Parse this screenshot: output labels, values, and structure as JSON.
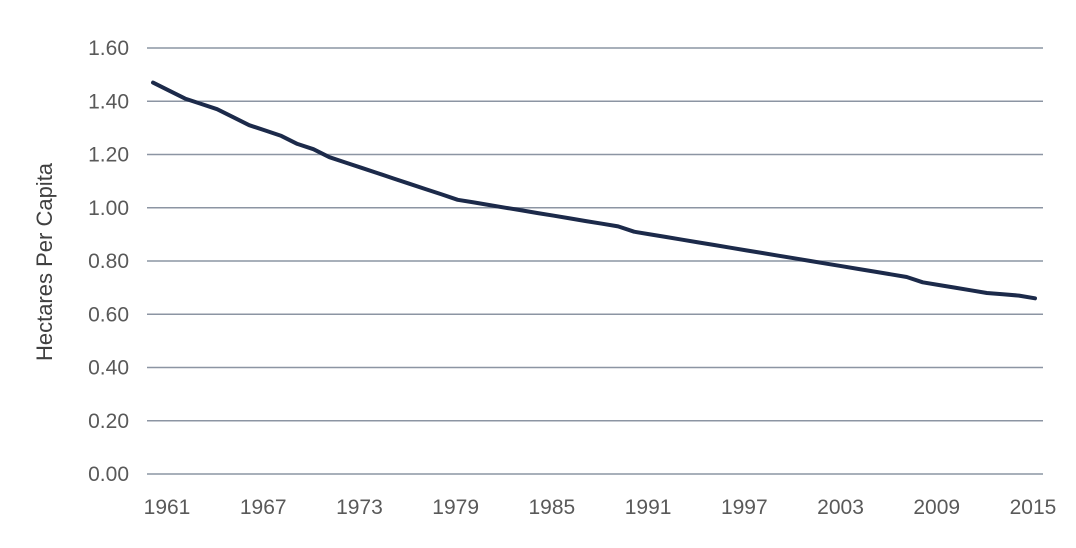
{
  "chart_data": {
    "type": "line",
    "title": "",
    "xlabel": "",
    "ylabel": "Hectares Per Capita",
    "ylim": [
      0,
      1.6
    ],
    "y_ticks": [
      "0.00",
      "0.20",
      "0.40",
      "0.60",
      "0.80",
      "1.00",
      "1.20",
      "1.40",
      "1.60"
    ],
    "x_ticks": [
      "1961",
      "1967",
      "1973",
      "1979",
      "1985",
      "1991",
      "1997",
      "2003",
      "2009",
      "2015"
    ],
    "grid": "horizontal",
    "legend": "none",
    "series": [
      {
        "color": "#1c2a4a",
        "x": [
          1961,
          1962,
          1963,
          1964,
          1965,
          1966,
          1967,
          1968,
          1969,
          1970,
          1971,
          1972,
          1973,
          1974,
          1975,
          1976,
          1977,
          1978,
          1979,
          1980,
          1981,
          1982,
          1983,
          1984,
          1985,
          1986,
          1987,
          1988,
          1989,
          1990,
          1991,
          1992,
          1993,
          1994,
          1995,
          1996,
          1997,
          1998,
          1999,
          2000,
          2001,
          2002,
          2003,
          2004,
          2005,
          2006,
          2007,
          2008,
          2009,
          2010,
          2011,
          2012,
          2013,
          2014,
          2015,
          2016
        ],
        "y": [
          1.47,
          1.44,
          1.41,
          1.39,
          1.37,
          1.34,
          1.31,
          1.29,
          1.27,
          1.24,
          1.22,
          1.19,
          1.17,
          1.15,
          1.13,
          1.11,
          1.09,
          1.07,
          1.05,
          1.03,
          1.02,
          1.01,
          1.0,
          0.99,
          0.98,
          0.97,
          0.96,
          0.95,
          0.94,
          0.93,
          0.91,
          0.9,
          0.89,
          0.88,
          0.87,
          0.86,
          0.85,
          0.84,
          0.83,
          0.82,
          0.81,
          0.8,
          0.79,
          0.78,
          0.77,
          0.76,
          0.75,
          0.74,
          0.72,
          0.71,
          0.7,
          0.69,
          0.68,
          0.675,
          0.67,
          0.66
        ]
      }
    ]
  }
}
